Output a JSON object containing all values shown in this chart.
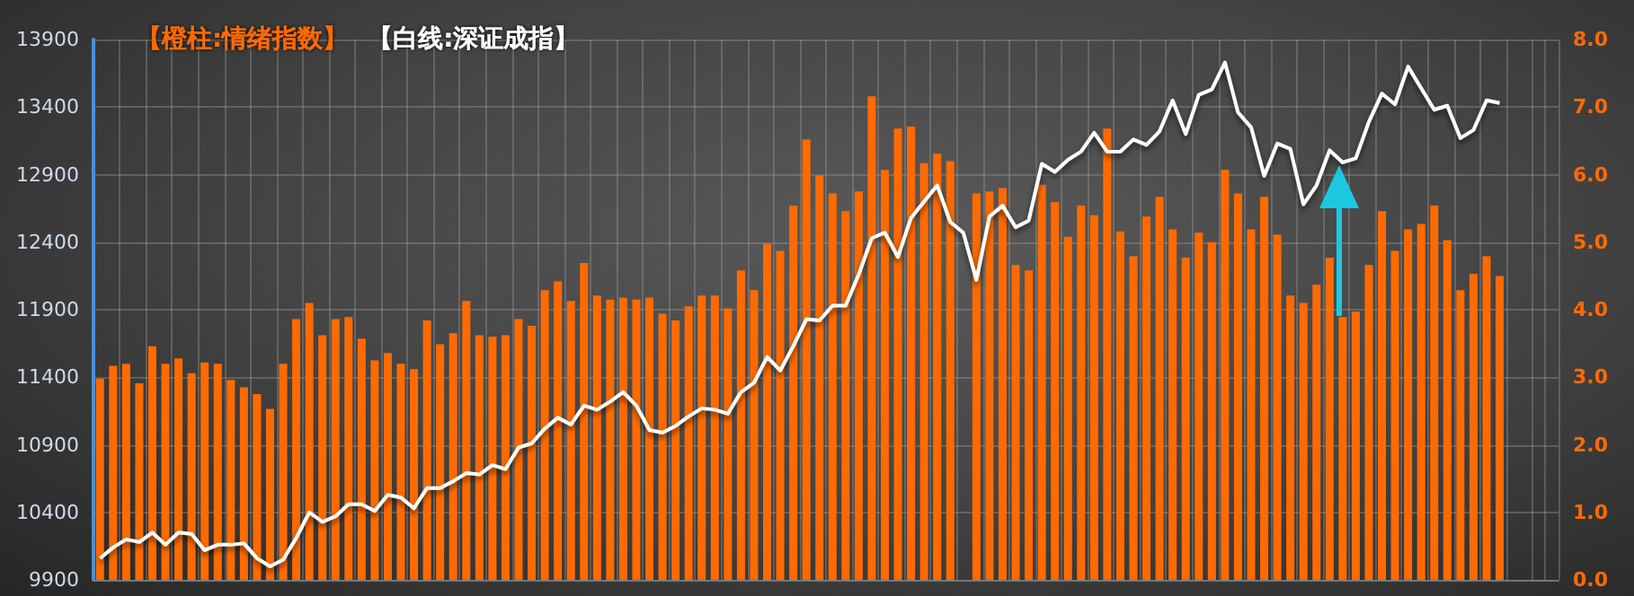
{
  "chart_data": {
    "type": "bar",
    "categories": [
      null,
      null,
      null,
      null,
      null,
      null,
      null,
      null,
      null,
      null,
      null,
      null,
      null,
      null,
      null,
      null,
      null,
      null,
      null,
      null,
      null,
      null,
      null,
      null,
      null,
      null,
      null,
      null,
      null,
      null,
      null,
      null,
      null,
      null,
      null,
      null,
      null,
      null,
      null,
      null,
      null,
      null,
      null,
      null,
      null,
      null,
      null,
      null,
      null,
      null,
      null,
      null,
      null,
      null,
      null,
      null,
      null,
      null,
      null,
      null,
      null,
      null,
      null,
      null,
      null,
      null,
      null,
      null,
      null,
      null,
      null,
      null,
      null,
      null,
      null,
      null,
      null,
      null,
      null,
      null,
      null,
      null,
      null,
      null,
      null,
      null,
      null,
      null,
      null,
      null,
      null,
      null,
      null,
      null,
      null,
      null,
      null,
      null,
      null,
      null,
      null,
      null,
      null,
      null,
      null,
      null,
      null,
      null,
      null,
      null,
      null,
      null
    ],
    "series": [
      {
        "name": "【橙柱:情绪指数】",
        "axis": "y2",
        "color": "#ff6a00",
        "values": [
          2.98,
          3.17,
          3.2,
          2.91,
          3.46,
          3.2,
          3.28,
          3.06,
          3.22,
          3.2,
          2.96,
          2.85,
          2.75,
          2.53,
          3.2,
          3.86,
          4.1,
          3.62,
          3.86,
          3.89,
          3.57,
          3.25,
          3.36,
          3.2,
          3.12,
          3.84,
          3.49,
          3.65,
          4.13,
          3.62,
          3.6,
          3.62,
          3.86,
          3.76,
          4.29,
          4.42,
          4.13,
          4.69,
          4.21,
          4.15,
          4.18,
          4.15,
          4.18,
          3.94,
          3.84,
          4.05,
          4.21,
          4.21,
          4.02,
          4.58,
          4.29,
          4.98,
          4.87,
          5.54,
          6.52,
          5.99,
          5.72,
          5.46,
          5.75,
          7.16,
          6.07,
          6.68,
          6.71,
          6.17,
          6.31,
          6.2,
          null,
          5.72,
          5.75,
          5.8,
          4.66,
          4.58,
          5.85,
          5.59,
          5.08,
          5.54,
          5.4,
          6.68,
          5.16,
          4.79,
          5.38,
          5.67,
          5.19,
          4.77,
          5.14,
          5.0,
          6.07,
          5.72,
          5.19,
          5.67,
          5.11,
          4.21,
          4.1,
          4.37,
          4.77,
          3.89,
          3.97,
          4.66,
          5.46,
          4.87,
          5.19,
          5.27,
          5.54,
          5.03,
          4.29,
          4.53,
          4.79,
          4.5,
          null,
          null,
          null,
          null
        ]
      },
      {
        "name": "【白线:深证成指】",
        "type": "line",
        "axis": "y",
        "color": "#ffffff",
        "values": [
          10060,
          10140,
          10200,
          10180,
          10250,
          10160,
          10250,
          10240,
          10120,
          10160,
          10160,
          10170,
          10060,
          10000,
          10050,
          10210,
          10400,
          10330,
          10370,
          10460,
          10460,
          10410,
          10530,
          10510,
          10430,
          10580,
          10580,
          10630,
          10690,
          10680,
          10750,
          10720,
          10880,
          10910,
          11020,
          11100,
          11050,
          11190,
          11160,
          11220,
          11290,
          11190,
          11010,
          10990,
          11040,
          11110,
          11170,
          11160,
          11130,
          11290,
          11360,
          11550,
          11450,
          11630,
          11830,
          11820,
          11930,
          11930,
          12160,
          12430,
          12470,
          12290,
          12580,
          12700,
          12820,
          12550,
          12470,
          12120,
          12590,
          12670,
          12510,
          12560,
          12980,
          12920,
          13010,
          13070,
          13210,
          13070,
          13070,
          13160,
          13120,
          13220,
          13450,
          13200,
          13490,
          13530,
          13730,
          13360,
          13250,
          12890,
          13130,
          13090,
          12680,
          12820,
          13080,
          12990,
          13020,
          13290,
          13500,
          13420,
          13700,
          13540,
          13380,
          13410,
          13170,
          13230,
          13450,
          13430,
          null,
          null,
          null,
          null
        ]
      }
    ],
    "ylim": [
      9900,
      13900
    ],
    "yticks": [
      9900,
      10400,
      10900,
      11400,
      11900,
      12400,
      12900,
      13400,
      13900
    ],
    "y2lim": [
      0,
      8
    ],
    "y2ticks": [
      {
        "value": 0,
        "label": "0.0"
      },
      {
        "value": 1,
        "label": "1.0"
      },
      {
        "value": 2,
        "label": "2.0"
      },
      {
        "value": 3,
        "label": "3.0"
      },
      {
        "value": 4,
        "label": "4.0"
      },
      {
        "value": 5,
        "label": "5.0"
      },
      {
        "value": 6,
        "label": "6.0"
      },
      {
        "value": 7,
        "label": "7.0"
      },
      {
        "value": 8,
        "label": "8.0"
      }
    ],
    "grid": true,
    "legend": "top left",
    "line_style": "solid",
    "tick_labels": "y"
  }
}
